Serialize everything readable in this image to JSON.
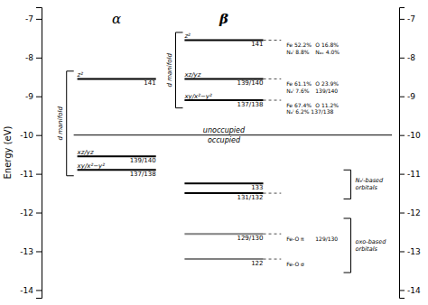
{
  "chart_data": {
    "type": "levels",
    "ylabel": "Energy (eV)",
    "ylim": [
      -14.2,
      -6.7
    ],
    "yticks": [
      -7,
      -8,
      -9,
      -10,
      -11,
      -12,
      -13,
      -14
    ],
    "series": [
      {
        "name": "α",
        "values": [
          -8.55,
          -10.55,
          -10.9
        ],
        "colors": [
          "black",
          "black",
          "black"
        ],
        "top_labels": [
          "z²",
          "xz/yz",
          "xy/x²−y²"
        ],
        "bottom_labels": [
          "141",
          "139/140",
          "137/138"
        ],
        "brackets": [
          {
            "label": "d manifold",
            "span": [
              -8.35,
              -11.05
            ]
          }
        ]
      },
      {
        "name": "β",
        "values": [
          -7.55,
          -8.55,
          -9.1,
          -11.25,
          -11.5,
          -12.55,
          -13.2
        ],
        "colors": [
          "black",
          "black",
          "black",
          "black",
          "black",
          "gray",
          "gray"
        ],
        "top_labels": [
          "z²",
          "xz/yz",
          "xy/x²−y²",
          null,
          null,
          null,
          null
        ],
        "bottom_labels": [
          "141",
          "139/140",
          "137/138",
          "133",
          "131/132",
          "129/130",
          "122"
        ],
        "notes": [
          [
            "Fe 52.2%",
            "O 16.8%",
            "Nₑⁱ 8.8%",
            "Nₐₓ 4.0%"
          ],
          [
            "Fe 61.1%",
            "O 23.9%",
            "Nₑⁱ 7.6%",
            "139/140"
          ],
          [
            "Fe 67.4%",
            "O 11.2%",
            "Nₑⁱ 6.2%  137/138"
          ],
          null,
          null,
          [
            "Fe-O π",
            "129/130"
          ],
          [
            "Fe-O σ"
          ]
        ],
        "brackets": [
          {
            "label": "d manifold",
            "span": [
              -7.35,
              -9.3
            ]
          }
        ]
      }
    ],
    "dashed": [
      -7.55,
      -8.55,
      -9.1,
      -11.5,
      -12.55,
      -13.2
    ],
    "divider": -10.0,
    "divider_labels": [
      "unoccupied",
      "occupied"
    ],
    "brackets": [
      {
        "label": "Nₑⁱ-based\norbitals",
        "span": [
          -10.9,
          -11.65
        ]
      },
      {
        "label": "oxo-based\norbitals",
        "span": [
          -12.15,
          -13.55
        ]
      }
    ]
  }
}
